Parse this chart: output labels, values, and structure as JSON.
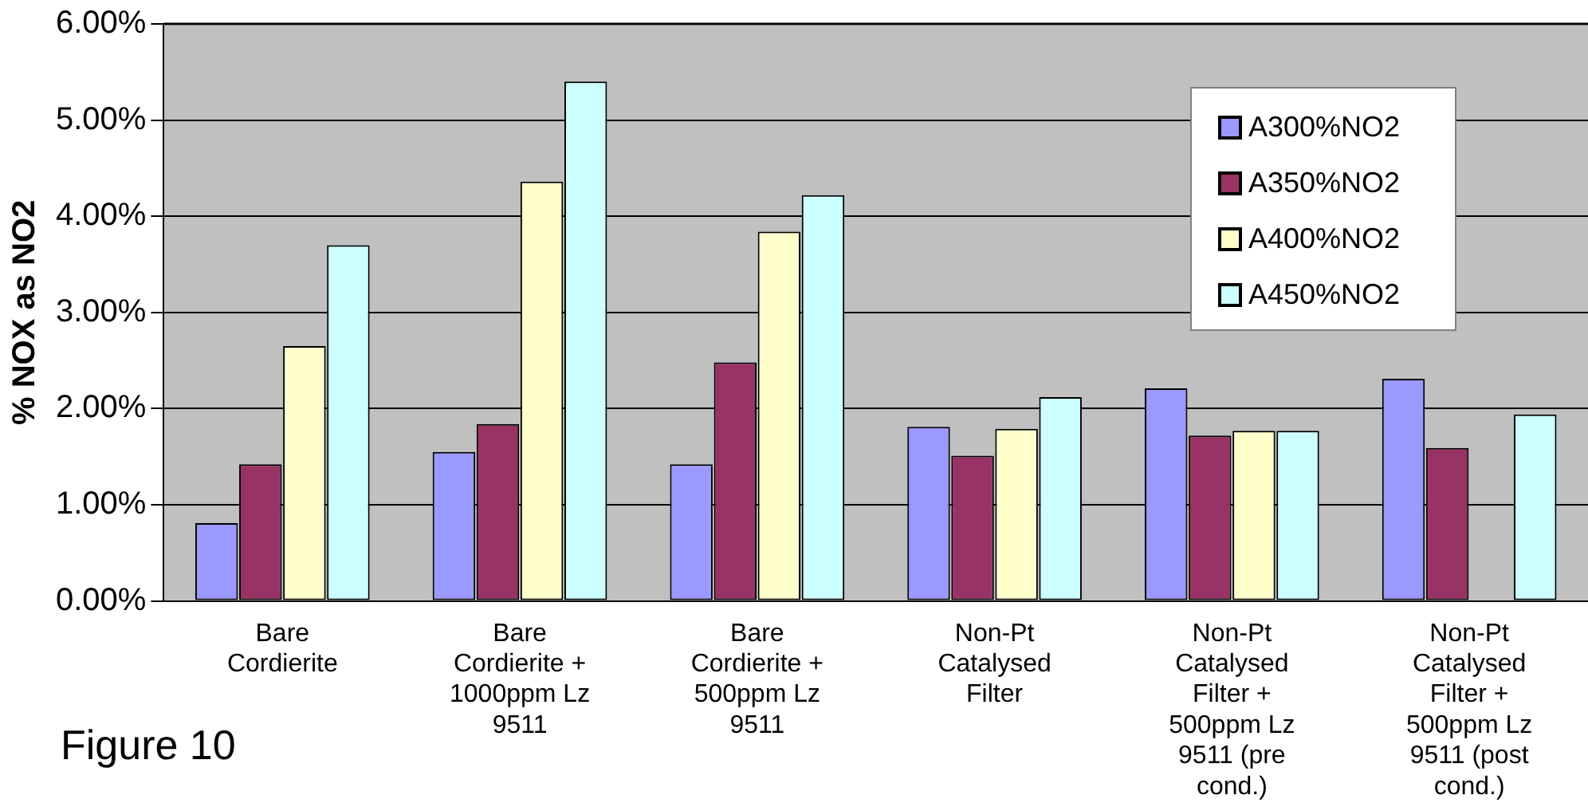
{
  "chart_data": {
    "type": "bar",
    "ylabel": "% NOX as NO2",
    "categories": [
      "Bare Cordierite",
      "Bare Cordierite + 1000ppm Lz 9511",
      "Bare Cordierite + 500ppm Lz 9511",
      "Non-Pt Catalysed Filter",
      "Non-Pt Catalysed Filter + 500ppm Lz 9511 (pre cond.)",
      "Non-Pt Catalysed Filter + 500ppm Lz 9511 (post cond.)"
    ],
    "series": [
      {
        "name": "A300%NO2",
        "color": "#9999ff",
        "values": [
          0.81,
          1.55,
          1.42,
          1.81,
          2.21,
          2.31
        ]
      },
      {
        "name": "A350%NO2",
        "color": "#993366",
        "values": [
          1.42,
          1.84,
          2.48,
          1.51,
          1.72,
          1.59
        ]
      },
      {
        "name": "A400%NO2",
        "color": "#ffffcc",
        "values": [
          2.65,
          4.36,
          3.84,
          1.79,
          1.77,
          null
        ]
      },
      {
        "name": "A450%NO2",
        "color": "#ccffff",
        "values": [
          3.7,
          5.4,
          4.22,
          2.12,
          1.77,
          1.94
        ]
      }
    ],
    "ylim": [
      0,
      6
    ],
    "yticks": [
      {
        "value": 0,
        "label": "0.00%"
      },
      {
        "value": 1,
        "label": "1.00%"
      },
      {
        "value": 2,
        "label": "2.00%"
      },
      {
        "value": 3,
        "label": "3.00%"
      },
      {
        "value": 4,
        "label": "4.00%"
      },
      {
        "value": 5,
        "label": "5.00%"
      },
      {
        "value": 6,
        "label": "6.00%"
      }
    ],
    "grid": "y",
    "legend": "top right",
    "annotations": [
      "Figure 10"
    ]
  }
}
